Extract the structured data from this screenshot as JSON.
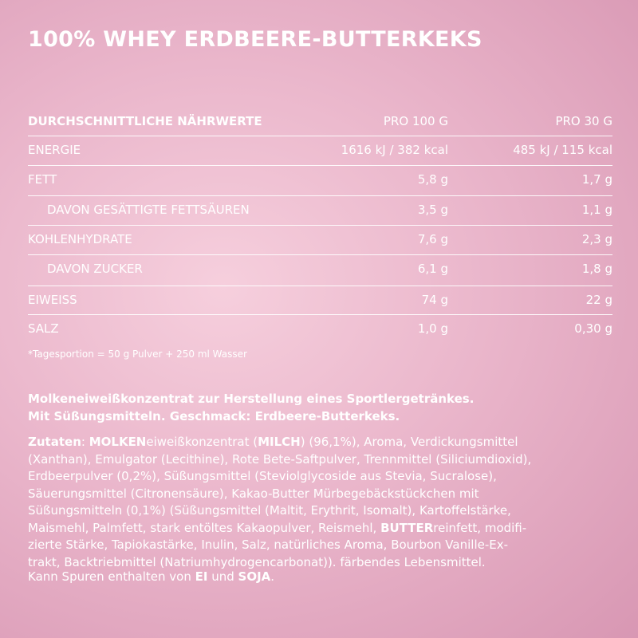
{
  "title": "100% WHEY ERDBEERE-BUTTERKEKS",
  "table": {
    "header": [
      "DURCHSCHNITTLICHE NÄHRWERTE",
      "PRO 100 G",
      "PRO 30 G"
    ],
    "rows": [
      {
        "label": "ENERGIE",
        "per100": "1616 kJ / 382 kcal",
        "per30": "485 kJ / 115 kcal"
      },
      {
        "label": "FETT",
        "per100": "5,8 g",
        "per30": "1,7 g"
      },
      {
        "label": "DAVON GESÄTTIGTE FETTSÄUREN",
        "per100": "3,5 g",
        "per30": "1,1 g",
        "indent": true
      },
      {
        "label": "KOHLENHYDRATE",
        "per100": "7,6 g",
        "per30": "2,3 g"
      },
      {
        "label": "DAVON ZUCKER",
        "per100": "6,1 g",
        "per30": "1,8 g",
        "indent": true
      },
      {
        "label": "EIWEISS",
        "per100": "74 g",
        "per30": "22 g"
      },
      {
        "label": "SALZ",
        "per100": "1,0 g",
        "per30": "0,30 g"
      }
    ]
  },
  "footnote": "*Tagesportion = 50 g Pulver + 250 ml Wasser",
  "description": [
    "Molkeneiweißkonzentrat zur Herstellung eines Sportlergetränkes.",
    "Mit Süßungsmitteln. Geschmack: Erdbeere-Butterkeks."
  ],
  "ingredients": [
    [
      {
        "text": "Zutaten",
        "bold": true
      },
      {
        "text": ": "
      },
      {
        "text": "MOLKEN",
        "bold": true
      },
      {
        "text": "eiweißkonzentrat ("
      },
      {
        "text": "MILCH",
        "bold": true
      },
      {
        "text": ") (96,1%), Aroma, Verdickungsmittel"
      }
    ],
    [
      {
        "text": "(Xanthan), Emulgator (Lecithine), Rote Bete-Saftpulver, Trennmittel (Siliciumdioxid),"
      }
    ],
    [
      {
        "text": "Erdbeerpulver (0,2%), Süßungsmittel (Steviolglycoside aus Stevia, Sucralose),"
      }
    ],
    [
      {
        "text": "Säuerungsmittel (Citronensäure), Kakao-Butter Mürbegebäckstückchen mit"
      }
    ],
    [
      {
        "text": "Süßungsmitteln (0,1%) (Süßungsmittel (Maltit, Erythrit, Isomalt), Kartoffelstärke,"
      }
    ],
    [
      {
        "text": "Maismehl, Palmfett, stark entöltes Kakaopulver, Reismehl, "
      },
      {
        "text": "BUTTER",
        "bold": true
      },
      {
        "text": "reinfett, modifi-"
      }
    ],
    [
      {
        "text": "zierte Stärke, Tapiokastärke, Inulin, Salz, natürliches Aroma, Bourbon Vanille-Ex-"
      }
    ],
    [
      {
        "text": "trakt, Backtriebmittel (Natriumhydrogencarbonat)). färbendes Lebensmittel."
      }
    ]
  ],
  "allergens": [
    {
      "text": "Kann Spuren enthalten von "
    },
    {
      "text": "EI",
      "bold": true
    },
    {
      "text": " und "
    },
    {
      "text": "SOJA",
      "bold": true
    },
    {
      "text": "."
    }
  ]
}
